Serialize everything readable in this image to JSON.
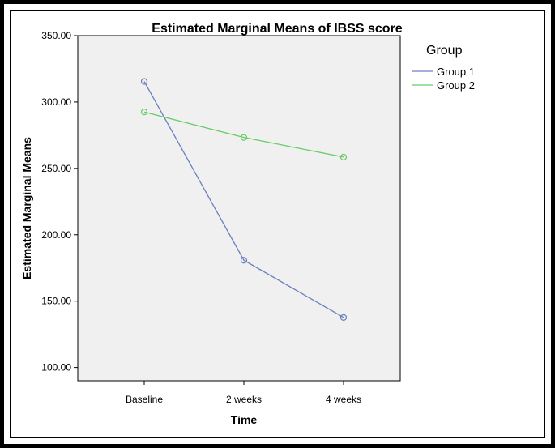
{
  "chart_data": {
    "type": "line",
    "title": "Estimated Marginal Means of IBSS score",
    "xlabel": "Time",
    "ylabel": "Estimated Marginal Means",
    "categories": [
      "Baseline",
      "2 weeks",
      "4 weeks"
    ],
    "ylim": [
      90,
      350
    ],
    "yticks": [
      "100.00",
      "150.00",
      "200.00",
      "250.00",
      "300.00",
      "350.00"
    ],
    "ytick_values": [
      100,
      150,
      200,
      250,
      300,
      350
    ],
    "legend": {
      "title": "Group",
      "placement": "right"
    },
    "series": [
      {
        "name": "Group 1",
        "values": [
          315.5,
          180.8,
          137.7
        ],
        "color": "#6a7fc0"
      },
      {
        "name": "Group 2",
        "values": [
          292.5,
          273.3,
          258.5
        ],
        "color": "#66cc66"
      }
    ],
    "grid": false,
    "plot_background": "#f0f0f0"
  }
}
